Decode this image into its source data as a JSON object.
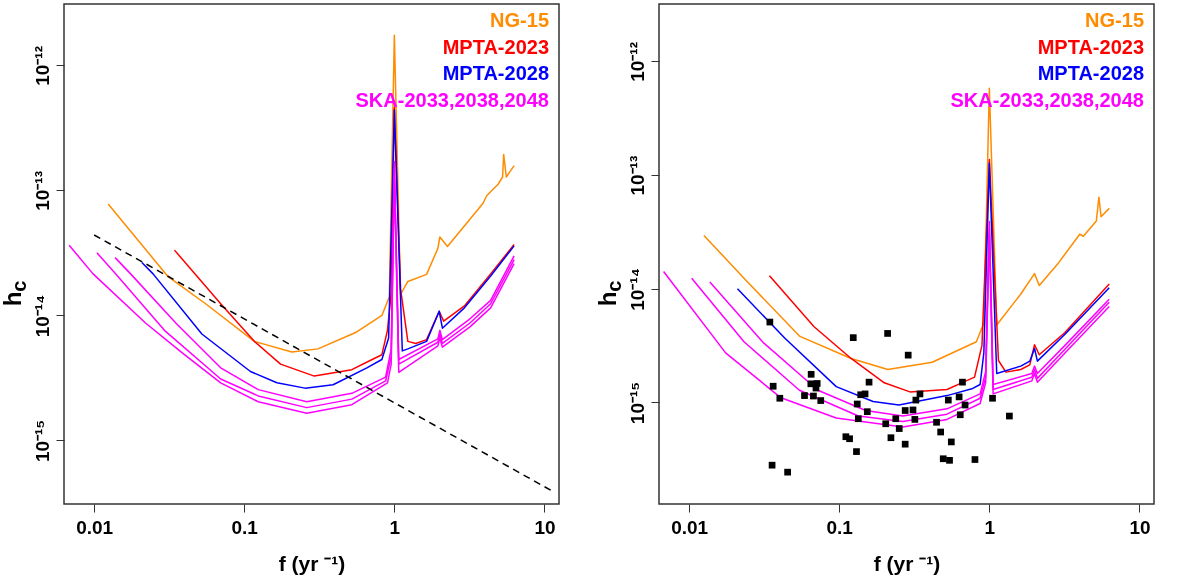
{
  "chart_data": [
    {
      "type": "line",
      "xlabel": "f (yr ⁻¹)",
      "ylabel": "h$_{c}$",
      "log": "xy",
      "legend": "top right",
      "xlim": [
        0.0063,
        12.5
      ],
      "ylim": [
        3.1e-16,
        3.1e-12
      ],
      "xticks": [
        0.01,
        0.1,
        1,
        10
      ],
      "yticks": [
        {
          "value": 1e-15,
          "label": "10⁻¹⁵"
        },
        {
          "value": 1e-14,
          "label": "10⁻¹⁴"
        },
        {
          "value": 1e-13,
          "label": "10⁻¹³"
        },
        {
          "value": 1e-12,
          "label": "10⁻¹²"
        }
      ],
      "series": [
        {
          "name": "NG-15",
          "color": "#ff8c00",
          "x": [
            0.0124,
            0.0311,
            0.0553,
            0.1167,
            0.2075,
            0.31,
            0.552,
            0.826,
            0.926,
            1.0,
            1.1,
            1.23,
            1.64,
            1.95,
            2.01,
            2.26,
            3.9,
            4.13,
            4.91,
            5.26,
            5.35,
            5.57,
            6.28
          ],
          "values": [
            7.8e-14,
            2.04e-14,
            1.24e-14,
            6.2e-15,
            5.1e-15,
            5.4e-15,
            7.3e-15,
            1e-14,
            1.41e-14,
            1.74e-12,
            1.47e-14,
            1.87e-14,
            2.13e-14,
            3.44e-14,
            4.24e-14,
            3.56e-14,
            7.9e-14,
            9.1e-14,
            1.12e-13,
            1.28e-13,
            1.94e-13,
            1.28e-13,
            1.58e-13
          ]
        },
        {
          "name": "MPTA-2023",
          "color": "#ff0000",
          "x": [
            0.0343,
            0.0697,
            0.1167,
            0.1746,
            0.293,
            0.521,
            0.695,
            0.826,
            0.9,
            0.953,
            1.0,
            1.1,
            1.23,
            1.39,
            1.64,
            1.99,
            2.13,
            2.93,
            4.38,
            6.28
          ],
          "values": [
            3.33e-14,
            1.24e-14,
            6.2e-15,
            4.08e-15,
            3.27e-15,
            3.68e-15,
            4.38e-15,
            4.85e-15,
            7.6e-15,
            1.52e-14,
            4.6e-13,
            1.63e-14,
            6.2e-15,
            5.97e-15,
            6.4e-15,
            1.08e-14,
            9e-15,
            1.19e-14,
            2.15e-14,
            3.69e-14
          ]
        },
        {
          "name": "MPTA-2028",
          "color": "#0000ff",
          "x": [
            0.0208,
            0.0247,
            0.0522,
            0.11,
            0.165,
            0.254,
            0.391,
            0.656,
            0.826,
            0.916,
            1.0,
            1.13,
            1.23,
            1.64,
            1.99,
            2.09,
            2.93,
            4.38,
            6.28
          ],
          "values": [
            2.65e-14,
            2.15e-14,
            7.1e-15,
            3.56e-15,
            2.89e-15,
            2.62e-15,
            2.79e-15,
            3.81e-15,
            4.44e-15,
            6.6e-15,
            4.4e-13,
            5.2e-15,
            5.4e-15,
            6.2e-15,
            1.08e-14,
            7.9e-15,
            1.15e-14,
            2.07e-14,
            3.6e-14
          ]
        },
        {
          "name": "SKA-2033,2038,2048",
          "color": "#ff00ff",
          "x": [
            0.0138,
            0.0175,
            0.035,
            0.0697,
            0.124,
            0.261,
            0.521,
            0.875,
            0.953,
            1.0,
            1.07,
            1.95,
            2.01,
            2.09,
            3.19,
            4.38,
            6.28
          ],
          "values": [
            2.9e-14,
            2.15e-14,
            8.7e-15,
            3.81e-15,
            2.55e-15,
            2.04e-15,
            2.38e-15,
            3.21e-15,
            5.4e-15,
            1.7e-13,
            4.44e-15,
            6.5e-15,
            7.6e-15,
            6.4e-15,
            9.4e-15,
            1.32e-14,
            3e-14
          ]
        },
        {
          "color": "#ff00ff",
          "x": [
            0.01044,
            0.0139,
            0.0294,
            0.0697,
            0.124,
            0.261,
            0.521,
            0.875,
            0.953,
            1.0,
            1.07,
            1.95,
            2.01,
            2.09,
            3.19,
            4.38,
            6.28
          ],
          "values": [
            3.17e-14,
            2.15e-14,
            7.6e-15,
            3.1e-15,
            2.27e-15,
            1.83e-15,
            2.14e-15,
            2.99e-15,
            4.7e-15,
            1.5e-13,
            4.08e-15,
            6.1e-15,
            7.1e-15,
            5.97e-15,
            8.7e-15,
            1.24e-14,
            2.8e-14
          ]
        },
        {
          "color": "#ff00ff",
          "x": [
            0.00682,
            0.00984,
            0.022,
            0.0392,
            0.0697,
            0.124,
            0.261,
            0.521,
            0.9,
            0.953,
            1.0,
            1.07,
            1.95,
            2.01,
            2.09,
            3.19,
            4.38,
            6.28
          ],
          "values": [
            3.64e-14,
            2.15e-14,
            8.7e-15,
            4.95e-15,
            2.89e-15,
            2.04e-15,
            1.65e-15,
            1.93e-15,
            2.89e-15,
            4.08e-15,
            1.3e-13,
            3.51e-15,
            5.7e-15,
            6.6e-15,
            5.57e-15,
            8.1e-15,
            1.15e-14,
            2.6e-14
          ]
        },
        {
          "type": "line",
          "line_style": "dashed",
          "color": "#000000",
          "x": [
            0.01,
            11
          ],
          "values": [
            4.4e-14,
            4e-16
          ]
        }
      ]
    },
    {
      "type": "line",
      "xlabel": "f (yr ⁻¹)",
      "ylabel": "h$_{c}$",
      "log": "xy",
      "legend": "top right",
      "xlim": [
        0.0063,
        12.5
      ],
      "ylim": [
        1.28e-16,
        3.2e-12
      ],
      "xticks": [
        0.01,
        0.1,
        1,
        10
      ],
      "yticks": [
        {
          "value": 1e-15,
          "label": "10⁻¹⁵"
        },
        {
          "value": 1e-14,
          "label": "10⁻¹⁴"
        },
        {
          "value": 1e-13,
          "label": "10⁻¹³"
        },
        {
          "value": 1e-12,
          "label": "10⁻¹²"
        }
      ],
      "series": [
        {
          "name": "NG-15",
          "color": "#ff8c00",
          "x": [
            0.01254,
            0.0232,
            0.0543,
            0.12,
            0.211,
            0.416,
            0.82,
            0.919,
            1.0,
            1.12,
            1.62,
            2.0,
            2.15,
            2.85,
            4.0,
            4.23,
            5.16,
            5.37,
            5.55,
            6.29
          ],
          "values": [
            2.95e-14,
            1.24e-14,
            3.84e-15,
            2.44e-15,
            1.95e-15,
            2.26e-15,
            3.42e-15,
            4.99e-15,
            5.8e-13,
            4.8e-15,
            9e-15,
            1.36e-14,
            1.07e-14,
            1.65e-14,
            3.02e-14,
            2.9e-14,
            3.94e-14,
            6.4e-14,
            4.3e-14,
            5.1e-14
          ]
        },
        {
          "name": "MPTA-2023",
          "color": "#ff0000",
          "x": [
            0.0343,
            0.068,
            0.12,
            0.1995,
            0.296,
            0.522,
            0.655,
            0.797,
            0.893,
            1.0,
            1.15,
            1.29,
            1.62,
            1.86,
            2.0,
            2.15,
            3.19,
            6.29
          ],
          "values": [
            1.3e-14,
            4.64e-15,
            2.44e-15,
            1.49e-15,
            1.24e-15,
            1.3e-15,
            1.49e-15,
            1.67e-15,
            3.18e-15,
            1.37e-13,
            2.34e-15,
            1.85e-15,
            1.95e-15,
            2.14e-15,
            3.22e-15,
            2.63e-15,
            4.13e-15,
            1.1e-14
          ]
        },
        {
          "name": "MPTA-2028",
          "color": "#0000ff",
          "x": [
            0.021,
            0.0433,
            0.0955,
            0.168,
            0.25,
            0.522,
            0.775,
            0.868,
            0.919,
            1.0,
            1.12,
            1.62,
            1.86,
            2.0,
            2.09,
            3.19,
            6.29
          ],
          "values": [
            1e-14,
            3.69e-15,
            1.38e-15,
            1.02e-15,
            9.5e-16,
            1.15e-15,
            1.33e-15,
            1.44e-15,
            2.73e-15,
            1.27e-13,
            1.8e-15,
            2.09e-15,
            2.31e-15,
            2.99e-15,
            2.31e-15,
            3.98e-15,
            1.02e-14
          ]
        },
        {
          "name": "SKA-2033,2038,2048",
          "color": "#ff00ff",
          "x": [
            0.01374,
            0.0308,
            0.0721,
            0.15,
            0.265,
            0.522,
            0.868,
            0.945,
            1.0,
            1.06,
            1.92,
            2.0,
            2.09,
            3.19,
            6.29
          ],
          "values": [
            1.15e-14,
            3.42e-15,
            1.28e-15,
            8.5e-16,
            7.6e-16,
            8.8e-16,
            1.19e-15,
            1.87e-15,
            3.9e-14,
            1.44e-15,
            1.8e-15,
            2.09e-15,
            1.8e-15,
            3.18e-15,
            8.1e-15
          ]
        },
        {
          "color": "#ff00ff",
          "x": [
            0.0104,
            0.0232,
            0.0543,
            0.134,
            0.265,
            0.522,
            0.868,
            0.945,
            1.0,
            1.06,
            1.92,
            2.0,
            2.09,
            3.19,
            6.29
          ],
          "values": [
            1.24e-14,
            3.42e-15,
            1.28e-15,
            7.6e-16,
            6.8e-16,
            7.9e-16,
            1.09e-15,
            1.67e-15,
            3.4e-14,
            1.3e-15,
            1.67e-15,
            1.95e-15,
            1.63e-15,
            2.94e-15,
            7.6e-15
          ]
        },
        {
          "color": "#ff00ff",
          "x": [
            0.00676,
            0.0175,
            0.0409,
            0.0955,
            0.265,
            0.522,
            0.868,
            0.945,
            1.0,
            1.06,
            1.92,
            2.0,
            2.09,
            3.19,
            6.29
          ],
          "values": [
            1.42e-14,
            2.73e-15,
            1.1e-15,
            7.3e-16,
            6.1e-16,
            7.1e-16,
            9.8e-16,
            1.49e-15,
            3e-14,
            1.19e-15,
            1.55e-15,
            1.8e-15,
            1.51e-15,
            2.73e-15,
            7e-15
          ]
        },
        {
          "type": "scatter",
          "marker": "square",
          "color": "#000000",
          "x": [
            0.0345,
            0.0363,
            0.0402,
            0.0357,
            0.0453,
            0.0587,
            0.065,
            0.0647,
            0.0673,
            0.0713,
            0.07,
            0.0753,
            0.1107,
            0.1172,
            0.124,
            0.1303,
            0.1318,
            0.134,
            0.139,
            0.1486,
            0.1538,
            0.158,
            0.204,
            0.21,
            0.221,
            0.238,
            0.251,
            0.275,
            0.275,
            0.288,
            0.31,
            0.319,
            0.324,
            0.345,
            0.445,
            0.474,
            0.493,
            0.533,
            0.543,
            0.558,
            0.629,
            0.64,
            0.662,
            0.689,
            0.802,
            1.05,
            1.36
          ],
          "values": [
            5.1e-15,
            1.39e-15,
            1.09e-15,
            2.81e-16,
            2.44e-16,
            1.15e-15,
            1.77e-15,
            1.46e-15,
            1.14e-15,
            1.47e-15,
            1.34e-15,
            1.04e-15,
            5e-16,
            4.8e-16,
            3.72e-15,
            3.7e-16,
            9.7e-16,
            7.2e-16,
            1.17e-15,
            1.19e-15,
            8.3e-16,
            1.51e-15,
            6.5e-16,
            4.05e-15,
            4.9e-16,
            7.2e-16,
            5.9e-16,
            4.3e-16,
            8.5e-16,
            2.61e-15,
            8.6e-16,
            7.1e-16,
            1.05e-15,
            1.19e-15,
            6.7e-16,
            5.5e-16,
            3.2e-16,
            1.05e-15,
            3.1e-16,
            4.5e-16,
            1.12e-15,
            7.8e-16,
            1.51e-15,
            9.5e-16,
            3.15e-16,
            1.09e-15,
            7.6e-16
          ]
        }
      ]
    }
  ]
}
